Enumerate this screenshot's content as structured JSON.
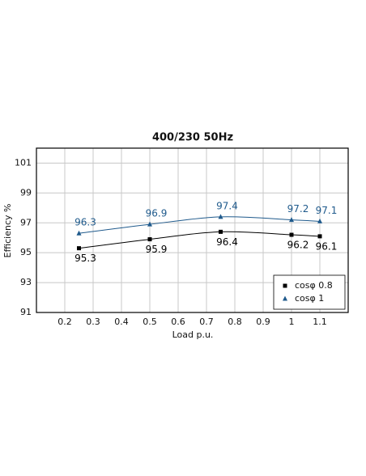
{
  "chart_data": {
    "type": "line",
    "title": "400/230 50Hz",
    "x_label": "Load p.u.",
    "y_label": "Efficiency %",
    "x": [
      0.25,
      0.5,
      0.75,
      1.0,
      1.1
    ],
    "series": [
      {
        "name": "cosφ 0.8",
        "color": "#000000",
        "marker": "square",
        "label_side": "below",
        "values": [
          95.3,
          95.9,
          96.4,
          96.2,
          96.1
        ]
      },
      {
        "name": "cosφ 1",
        "color": "#1f5a8c",
        "marker": "triangle",
        "label_side": "above",
        "values": [
          96.3,
          96.9,
          97.4,
          97.2,
          97.1
        ]
      }
    ],
    "xlim": [
      0.1,
      1.2
    ],
    "xticks": [
      0.2,
      0.3,
      0.4,
      0.5,
      0.6,
      0.7,
      0.8,
      0.9,
      1.0,
      1.1
    ],
    "ylim": [
      91,
      102
    ],
    "yticks": [
      91,
      93,
      95,
      97,
      99,
      101
    ],
    "grid": true,
    "legend": "lower right"
  }
}
